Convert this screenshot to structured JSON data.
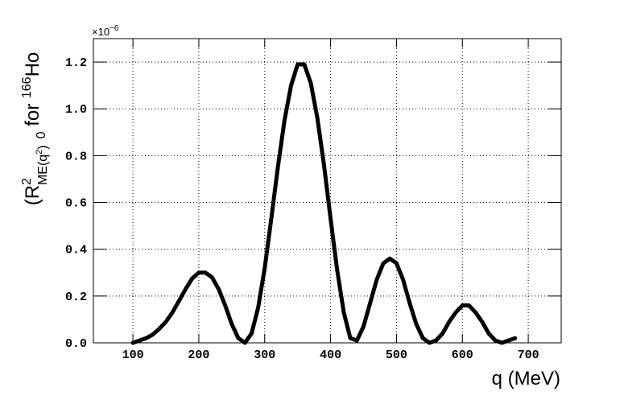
{
  "chart_data": {
    "type": "line",
    "x_label": "q (MeV)",
    "y_label_parts": [
      "(R",
      "2",
      "ME(q",
      "2",
      ")",
      "0",
      " for ",
      "166",
      "Ho"
    ],
    "y_multiplier": [
      "×10",
      "−6"
    ],
    "x": [
      100,
      110,
      120,
      130,
      140,
      150,
      160,
      170,
      180,
      190,
      200,
      210,
      220,
      230,
      240,
      250,
      260,
      270,
      280,
      290,
      300,
      310,
      320,
      330,
      340,
      350,
      360,
      370,
      380,
      390,
      400,
      410,
      420,
      430,
      440,
      450,
      460,
      470,
      480,
      490,
      500,
      510,
      520,
      530,
      540,
      550,
      560,
      570,
      580,
      590,
      600,
      610,
      620,
      630,
      640,
      650,
      660,
      670,
      680
    ],
    "series": [
      {
        "color": "#000000",
        "values": [
          0.0,
          0.01,
          0.02,
          0.035,
          0.06,
          0.09,
          0.13,
          0.18,
          0.23,
          0.275,
          0.3,
          0.3,
          0.28,
          0.23,
          0.16,
          0.08,
          0.02,
          0.0,
          0.04,
          0.15,
          0.32,
          0.53,
          0.75,
          0.95,
          1.1,
          1.19,
          1.19,
          1.11,
          0.96,
          0.76,
          0.53,
          0.31,
          0.13,
          0.02,
          0.01,
          0.07,
          0.17,
          0.27,
          0.34,
          0.36,
          0.34,
          0.27,
          0.17,
          0.08,
          0.02,
          0.0,
          0.01,
          0.04,
          0.09,
          0.13,
          0.16,
          0.16,
          0.13,
          0.09,
          0.04,
          0.01,
          0.0,
          0.01,
          0.02
        ]
      }
    ],
    "xlim": [
      40,
      750
    ],
    "ylim": [
      0,
      1.3
    ],
    "xticks": [
      100,
      200,
      300,
      400,
      500,
      600,
      700
    ],
    "yticks": [
      {
        "value": 0,
        "label": "0.0"
      },
      0.2,
      0.4,
      0.6,
      0.8,
      {
        "value": 1,
        "label": "1.0"
      },
      1.2
    ],
    "grid": true
  }
}
